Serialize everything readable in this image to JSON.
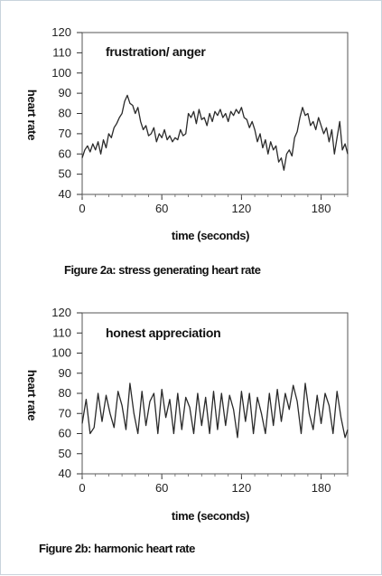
{
  "chart_data": [
    {
      "type": "line",
      "annotation": "frustration/ anger",
      "xlabel": "time (seconds)",
      "ylabel": "heart rate",
      "xlim": [
        0,
        200
      ],
      "ylim": [
        40,
        120
      ],
      "xticks": [
        "0",
        "60",
        "120",
        "180"
      ],
      "xtick_values": [
        0,
        60,
        120,
        180
      ],
      "yticks": [
        "120",
        "110",
        "100",
        "90",
        "80",
        "70",
        "60",
        "50",
        "40"
      ],
      "ytick_values": [
        120,
        110,
        100,
        90,
        80,
        70,
        60,
        50,
        40
      ],
      "grid": false,
      "line_color": "#2a2a2a",
      "series": [
        {
          "x": [
            0,
            2,
            4,
            6,
            8,
            10,
            12,
            14,
            16,
            18,
            20,
            22,
            24,
            26,
            28,
            30,
            32,
            34,
            36,
            38,
            40,
            42,
            44,
            46,
            48,
            50,
            52,
            54,
            56,
            58,
            60,
            62,
            64,
            66,
            68,
            70,
            72,
            74,
            76,
            78,
            80,
            82,
            84,
            86,
            88,
            90,
            92,
            94,
            96,
            98,
            100,
            102,
            104,
            106,
            108,
            110,
            112,
            114,
            116,
            118,
            120,
            122,
            124,
            126,
            128,
            130,
            132,
            134,
            136,
            138,
            140,
            142,
            144,
            146,
            148,
            150,
            152,
            154,
            156,
            158,
            160,
            162,
            164,
            166,
            168,
            170,
            172,
            174,
            176,
            178,
            180,
            182,
            184,
            186,
            188,
            190,
            192,
            194,
            196,
            198,
            200
          ],
          "values": [
            58,
            62,
            64,
            61,
            65,
            62,
            66,
            60,
            67,
            63,
            70,
            68,
            73,
            75,
            78,
            80,
            86,
            89,
            85,
            84,
            80,
            83,
            76,
            72,
            74,
            69,
            70,
            73,
            66,
            70,
            68,
            72,
            67,
            69,
            66,
            68,
            67,
            72,
            69,
            70,
            80,
            78,
            81,
            75,
            82,
            77,
            78,
            74,
            80,
            76,
            81,
            79,
            82,
            78,
            80,
            76,
            81,
            79,
            82,
            80,
            83,
            78,
            77,
            73,
            76,
            72,
            66,
            70,
            63,
            67,
            60,
            66,
            62,
            64,
            56,
            58,
            52,
            60,
            62,
            59,
            68,
            71,
            78,
            83,
            79,
            80,
            74,
            76,
            72,
            78,
            74,
            70,
            73,
            66,
            72,
            60,
            68,
            76,
            62,
            65,
            60
          ]
        }
      ]
    },
    {
      "type": "line",
      "annotation": "honest  appreciation",
      "xlabel": "time (seconds)",
      "ylabel": "heart rate",
      "xlim": [
        0,
        200
      ],
      "ylim": [
        40,
        120
      ],
      "xticks": [
        "0",
        "60",
        "120",
        "180"
      ],
      "xtick_values": [
        0,
        60,
        120,
        180
      ],
      "yticks": [
        "120",
        "110",
        "100",
        "90",
        "80",
        "70",
        "60",
        "50",
        "40"
      ],
      "ytick_values": [
        120,
        110,
        100,
        90,
        80,
        70,
        60,
        50,
        40
      ],
      "grid": false,
      "line_color": "#2a2a2a",
      "series": [
        {
          "x": [
            0,
            3,
            6,
            9,
            12,
            15,
            18,
            21,
            24,
            27,
            30,
            33,
            36,
            39,
            42,
            45,
            48,
            51,
            54,
            57,
            60,
            63,
            66,
            69,
            72,
            75,
            78,
            81,
            84,
            87,
            90,
            93,
            96,
            99,
            102,
            105,
            108,
            111,
            114,
            117,
            120,
            123,
            126,
            129,
            132,
            135,
            138,
            141,
            144,
            147,
            150,
            153,
            156,
            159,
            162,
            165,
            168,
            171,
            174,
            177,
            180,
            183,
            186,
            189,
            192,
            195,
            198,
            200
          ],
          "values": [
            65,
            77,
            60,
            63,
            80,
            66,
            79,
            70,
            63,
            81,
            74,
            62,
            85,
            70,
            60,
            81,
            64,
            76,
            80,
            60,
            82,
            68,
            77,
            60,
            80,
            62,
            78,
            73,
            60,
            80,
            64,
            78,
            60,
            81,
            62,
            80,
            64,
            79,
            72,
            58,
            81,
            66,
            80,
            60,
            78,
            70,
            60,
            80,
            64,
            82,
            66,
            80,
            72,
            84,
            76,
            60,
            85,
            70,
            62,
            79,
            65,
            80,
            74,
            60,
            81,
            68,
            58,
            62
          ]
        }
      ]
    }
  ],
  "captions": {
    "fig2a": "Figure 2a:  stress generating heart rate",
    "fig2b": "Figure 2b:  harmonic heart rate"
  }
}
